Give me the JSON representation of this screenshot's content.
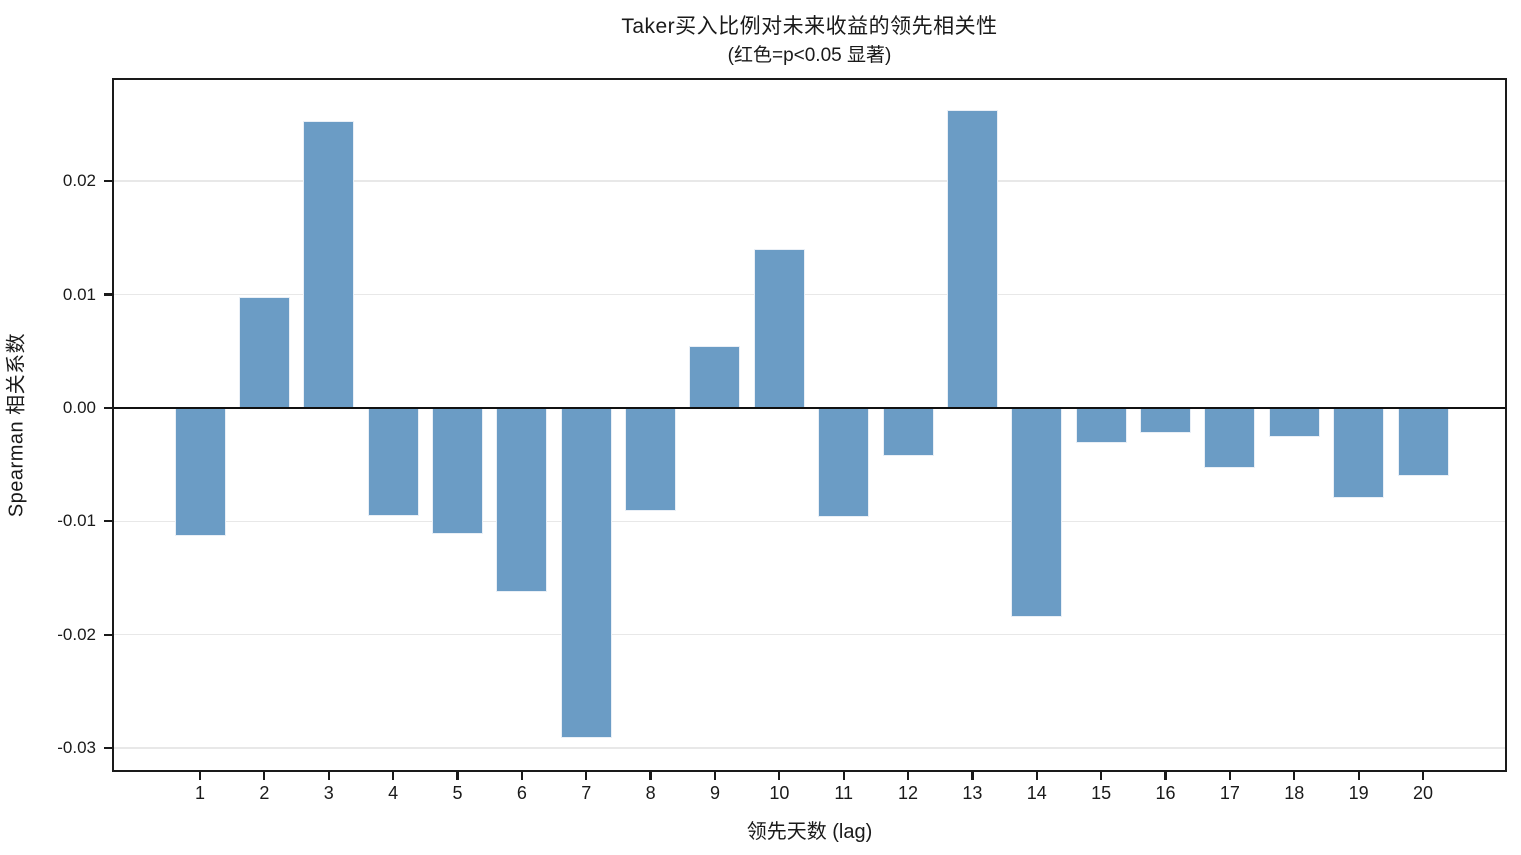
{
  "title": "Taker买入比例对未来收益的领先相关性",
  "subtitle": "(红色=p<0.05 显著)",
  "chart_data": {
    "type": "bar",
    "title": "Taker买入比例对未来收益的领先相关性",
    "subtitle": "(红色=p<0.05 显著)",
    "xlabel": "领先天数 (lag)",
    "ylabel": "Spearman 相关系数",
    "categories": [
      1,
      2,
      3,
      4,
      5,
      6,
      7,
      8,
      9,
      10,
      11,
      12,
      13,
      14,
      15,
      16,
      17,
      18,
      19,
      20
    ],
    "values": [
      -0.0113,
      0.0098,
      0.0253,
      -0.0095,
      -0.0111,
      -0.0162,
      -0.0291,
      -0.0091,
      0.0055,
      0.014,
      -0.0096,
      -0.0042,
      0.0263,
      -0.0184,
      -0.0031,
      -0.0022,
      -0.0053,
      -0.0026,
      -0.0079,
      -0.006
    ],
    "ylim": [
      -0.0321,
      0.0291
    ],
    "yticks": [
      0.02,
      0.01,
      0.0,
      -0.01,
      -0.02,
      -0.03
    ],
    "ytick_labels": [
      "0.02",
      "0.01",
      "0.00",
      "-0.01",
      "-0.02",
      "-0.03"
    ],
    "grid": "horizontal",
    "legend": "none",
    "zero_line": true,
    "bar_color": "#6b9cc5",
    "significance_color": "#d62728",
    "significant_bars": []
  }
}
